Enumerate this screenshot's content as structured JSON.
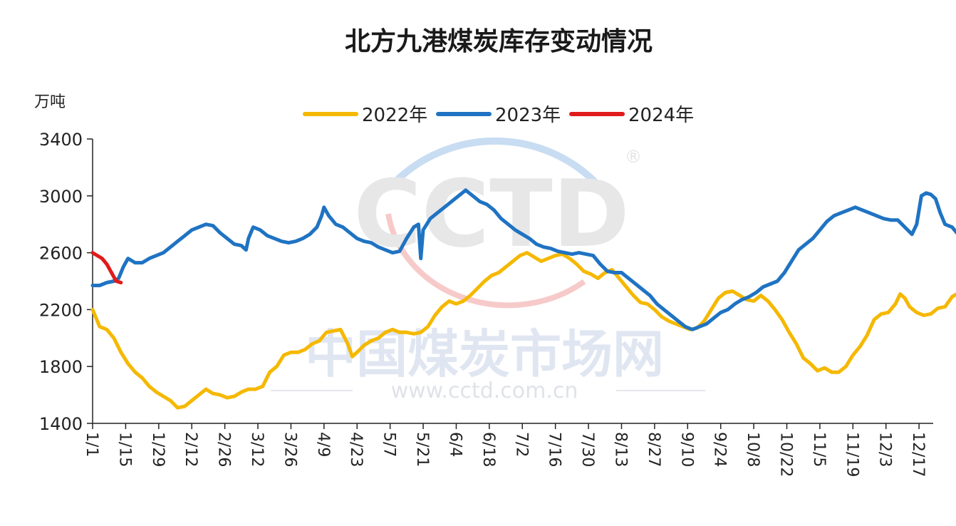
{
  "chart_data": {
    "type": "line",
    "title": "北方九港煤炭库存变动情况",
    "ylabel": "万吨",
    "ylim": [
      1400,
      3400
    ],
    "yticks": [
      1400,
      1800,
      2200,
      2600,
      3000,
      3400
    ],
    "xticks": [
      "1/1",
      "1/15",
      "1/29",
      "2/12",
      "2/26",
      "3/12",
      "3/26",
      "4/9",
      "4/23",
      "5/7",
      "5/21",
      "6/4",
      "6/18",
      "7/2",
      "7/16",
      "7/30",
      "8/13",
      "8/27",
      "9/10",
      "9/24",
      "10/8",
      "10/22",
      "11/5",
      "11/19",
      "12/3",
      "12/17"
    ],
    "xtick_days": [
      0,
      14,
      28,
      42,
      56,
      70,
      84,
      98,
      112,
      126,
      140,
      154,
      168,
      182,
      196,
      210,
      224,
      238,
      252,
      266,
      280,
      294,
      308,
      322,
      336,
      350
    ],
    "x_span_days": 356,
    "watermark": {
      "logo": "CCTD",
      "registered": "®",
      "cn": "中国煤炭市场网",
      "url": "www.cctd.com.cn"
    },
    "series": [
      {
        "name": "2022年",
        "color": "#F5B800",
        "points": [
          [
            0,
            2200
          ],
          [
            3,
            2080
          ],
          [
            6,
            2060
          ],
          [
            9,
            2000
          ],
          [
            12,
            1900
          ],
          [
            15,
            1820
          ],
          [
            18,
            1760
          ],
          [
            21,
            1720
          ],
          [
            24,
            1660
          ],
          [
            27,
            1620
          ],
          [
            30,
            1590
          ],
          [
            33,
            1560
          ],
          [
            36,
            1510
          ],
          [
            39,
            1520
          ],
          [
            42,
            1560
          ],
          [
            45,
            1600
          ],
          [
            48,
            1640
          ],
          [
            51,
            1610
          ],
          [
            54,
            1600
          ],
          [
            57,
            1580
          ],
          [
            60,
            1590
          ],
          [
            63,
            1620
          ],
          [
            66,
            1640
          ],
          [
            69,
            1640
          ],
          [
            72,
            1660
          ],
          [
            75,
            1760
          ],
          [
            78,
            1800
          ],
          [
            81,
            1880
          ],
          [
            84,
            1900
          ],
          [
            87,
            1900
          ],
          [
            90,
            1920
          ],
          [
            93,
            1960
          ],
          [
            96,
            1980
          ],
          [
            99,
            2040
          ],
          [
            102,
            2050
          ],
          [
            105,
            2060
          ],
          [
            108,
            1960
          ],
          [
            110,
            1870
          ],
          [
            112,
            1900
          ],
          [
            115,
            1950
          ],
          [
            118,
            1980
          ],
          [
            121,
            2000
          ],
          [
            124,
            2040
          ],
          [
            127,
            2060
          ],
          [
            130,
            2040
          ],
          [
            133,
            2040
          ],
          [
            136,
            2030
          ],
          [
            139,
            2040
          ],
          [
            142,
            2080
          ],
          [
            145,
            2160
          ],
          [
            148,
            2220
          ],
          [
            151,
            2260
          ],
          [
            154,
            2240
          ],
          [
            157,
            2260
          ],
          [
            160,
            2300
          ],
          [
            163,
            2350
          ],
          [
            166,
            2400
          ],
          [
            169,
            2440
          ],
          [
            172,
            2460
          ],
          [
            175,
            2500
          ],
          [
            178,
            2540
          ],
          [
            181,
            2580
          ],
          [
            184,
            2600
          ],
          [
            187,
            2570
          ],
          [
            190,
            2540
          ],
          [
            193,
            2560
          ],
          [
            196,
            2580
          ],
          [
            199,
            2590
          ],
          [
            202,
            2560
          ],
          [
            205,
            2520
          ],
          [
            208,
            2470
          ],
          [
            211,
            2450
          ],
          [
            214,
            2420
          ],
          [
            217,
            2460
          ],
          [
            220,
            2480
          ],
          [
            223,
            2420
          ],
          [
            226,
            2360
          ],
          [
            229,
            2300
          ],
          [
            232,
            2250
          ],
          [
            235,
            2240
          ],
          [
            238,
            2200
          ],
          [
            241,
            2150
          ],
          [
            244,
            2120
          ],
          [
            247,
            2100
          ],
          [
            250,
            2080
          ],
          [
            253,
            2060
          ],
          [
            256,
            2070
          ],
          [
            259,
            2120
          ],
          [
            262,
            2200
          ],
          [
            265,
            2280
          ],
          [
            268,
            2320
          ],
          [
            271,
            2330
          ],
          [
            274,
            2300
          ],
          [
            277,
            2270
          ],
          [
            280,
            2260
          ],
          [
            283,
            2300
          ],
          [
            286,
            2260
          ],
          [
            289,
            2200
          ],
          [
            292,
            2130
          ],
          [
            295,
            2040
          ],
          [
            298,
            1960
          ],
          [
            301,
            1860
          ],
          [
            304,
            1820
          ],
          [
            307,
            1770
          ],
          [
            310,
            1790
          ],
          [
            313,
            1760
          ],
          [
            316,
            1760
          ],
          [
            319,
            1800
          ],
          [
            322,
            1880
          ],
          [
            325,
            1940
          ],
          [
            328,
            2020
          ],
          [
            331,
            2130
          ],
          [
            334,
            2170
          ],
          [
            337,
            2180
          ],
          [
            340,
            2240
          ],
          [
            342,
            2310
          ],
          [
            344,
            2280
          ],
          [
            346,
            2220
          ],
          [
            349,
            2180
          ],
          [
            352,
            2160
          ],
          [
            355,
            2170
          ],
          [
            358,
            2210
          ],
          [
            361,
            2220
          ],
          [
            364,
            2290
          ],
          [
            367,
            2320
          ],
          [
            370,
            2360
          ]
        ]
      },
      {
        "name": "2023年",
        "color": "#1F73C2",
        "points": [
          [
            0,
            2370
          ],
          [
            3,
            2370
          ],
          [
            6,
            2390
          ],
          [
            9,
            2400
          ],
          [
            11,
            2420
          ],
          [
            13,
            2500
          ],
          [
            15,
            2560
          ],
          [
            18,
            2530
          ],
          [
            21,
            2530
          ],
          [
            24,
            2560
          ],
          [
            27,
            2580
          ],
          [
            30,
            2600
          ],
          [
            33,
            2640
          ],
          [
            36,
            2680
          ],
          [
            39,
            2720
          ],
          [
            42,
            2760
          ],
          [
            45,
            2780
          ],
          [
            48,
            2800
          ],
          [
            51,
            2790
          ],
          [
            54,
            2740
          ],
          [
            57,
            2700
          ],
          [
            60,
            2660
          ],
          [
            63,
            2650
          ],
          [
            65,
            2620
          ],
          [
            66,
            2700
          ],
          [
            68,
            2780
          ],
          [
            71,
            2760
          ],
          [
            74,
            2720
          ],
          [
            77,
            2700
          ],
          [
            80,
            2680
          ],
          [
            83,
            2670
          ],
          [
            86,
            2680
          ],
          [
            89,
            2700
          ],
          [
            92,
            2730
          ],
          [
            95,
            2780
          ],
          [
            97,
            2860
          ],
          [
            98,
            2920
          ],
          [
            100,
            2860
          ],
          [
            103,
            2800
          ],
          [
            106,
            2780
          ],
          [
            109,
            2740
          ],
          [
            112,
            2700
          ],
          [
            115,
            2680
          ],
          [
            118,
            2670
          ],
          [
            121,
            2640
          ],
          [
            124,
            2620
          ],
          [
            127,
            2600
          ],
          [
            130,
            2610
          ],
          [
            133,
            2700
          ],
          [
            136,
            2780
          ],
          [
            138,
            2800
          ],
          [
            139,
            2560
          ],
          [
            140,
            2760
          ],
          [
            143,
            2840
          ],
          [
            146,
            2880
          ],
          [
            149,
            2920
          ],
          [
            152,
            2960
          ],
          [
            155,
            3000
          ],
          [
            158,
            3040
          ],
          [
            161,
            3000
          ],
          [
            164,
            2960
          ],
          [
            167,
            2940
          ],
          [
            170,
            2900
          ],
          [
            173,
            2840
          ],
          [
            176,
            2800
          ],
          [
            179,
            2760
          ],
          [
            182,
            2730
          ],
          [
            185,
            2700
          ],
          [
            188,
            2660
          ],
          [
            191,
            2640
          ],
          [
            194,
            2630
          ],
          [
            197,
            2610
          ],
          [
            200,
            2600
          ],
          [
            203,
            2590
          ],
          [
            206,
            2600
          ],
          [
            209,
            2590
          ],
          [
            212,
            2580
          ],
          [
            215,
            2520
          ],
          [
            218,
            2470
          ],
          [
            221,
            2460
          ],
          [
            224,
            2460
          ],
          [
            227,
            2420
          ],
          [
            230,
            2380
          ],
          [
            233,
            2340
          ],
          [
            236,
            2300
          ],
          [
            239,
            2240
          ],
          [
            242,
            2200
          ],
          [
            245,
            2160
          ],
          [
            248,
            2120
          ],
          [
            251,
            2080
          ],
          [
            254,
            2060
          ],
          [
            257,
            2080
          ],
          [
            260,
            2100
          ],
          [
            263,
            2140
          ],
          [
            266,
            2180
          ],
          [
            269,
            2200
          ],
          [
            272,
            2240
          ],
          [
            275,
            2270
          ],
          [
            278,
            2290
          ],
          [
            281,
            2320
          ],
          [
            284,
            2360
          ],
          [
            287,
            2380
          ],
          [
            290,
            2400
          ],
          [
            293,
            2460
          ],
          [
            296,
            2540
          ],
          [
            299,
            2620
          ],
          [
            302,
            2660
          ],
          [
            305,
            2700
          ],
          [
            308,
            2760
          ],
          [
            311,
            2820
          ],
          [
            314,
            2860
          ],
          [
            317,
            2880
          ],
          [
            320,
            2900
          ],
          [
            323,
            2920
          ],
          [
            326,
            2900
          ],
          [
            329,
            2880
          ],
          [
            332,
            2860
          ],
          [
            335,
            2840
          ],
          [
            338,
            2830
          ],
          [
            341,
            2830
          ],
          [
            344,
            2780
          ],
          [
            347,
            2730
          ],
          [
            349,
            2800
          ],
          [
            351,
            3000
          ],
          [
            353,
            3020
          ],
          [
            355,
            3010
          ],
          [
            357,
            2980
          ],
          [
            359,
            2880
          ],
          [
            361,
            2800
          ],
          [
            364,
            2780
          ],
          [
            366,
            2740
          ],
          [
            368,
            2710
          ]
        ]
      },
      {
        "name": "2024年",
        "color": "#E01B1B",
        "points": [
          [
            0,
            2600
          ],
          [
            2,
            2580
          ],
          [
            4,
            2560
          ],
          [
            6,
            2520
          ],
          [
            8,
            2460
          ],
          [
            10,
            2400
          ],
          [
            12,
            2390
          ]
        ]
      }
    ]
  }
}
